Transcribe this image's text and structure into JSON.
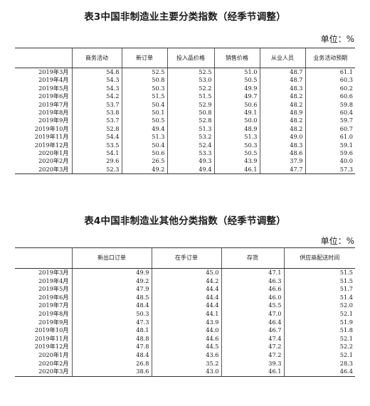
{
  "table3": {
    "title": "表3中国非制造业主要分类指数（经季节调整）",
    "unit": "单位：%",
    "headers": [
      "",
      "商务活动",
      "新订单",
      "投入品价格",
      "销售价格",
      "从业人员",
      "业务活动预期"
    ],
    "rows": [
      [
        "2019年3月",
        "54.8",
        "52.5",
        "52.5",
        "51.0",
        "48.7",
        "61.1"
      ],
      [
        "2019年4月",
        "54.3",
        "50.8",
        "53.0",
        "50.5",
        "48.7",
        "60.3"
      ],
      [
        "2019年5月",
        "54.3",
        "50.3",
        "52.2",
        "49.9",
        "48.3",
        "60.2"
      ],
      [
        "2019年6月",
        "54.2",
        "51.5",
        "51.5",
        "49.7",
        "48.2",
        "60.6"
      ],
      [
        "2019年7月",
        "53.7",
        "50.4",
        "52.9",
        "50.6",
        "48.2",
        "59.8"
      ],
      [
        "2019年8月",
        "53.8",
        "50.1",
        "50.8",
        "49.1",
        "48.9",
        "60.4"
      ],
      [
        "2019年9月",
        "53.7",
        "50.5",
        "52.8",
        "50.0",
        "48.2",
        "59.7"
      ],
      [
        "2019年10月",
        "52.8",
        "49.4",
        "51.3",
        "48.9",
        "48.2",
        "60.7"
      ],
      [
        "2019年11月",
        "54.4",
        "51.3",
        "53.2",
        "51.3",
        "49.0",
        "61.0"
      ],
      [
        "2019年12月",
        "53.5",
        "50.4",
        "52.4",
        "50.3",
        "48.3",
        "59.1"
      ],
      [
        "2020年1月",
        "54.1",
        "50.6",
        "53.3",
        "50.5",
        "48.6",
        "59.6"
      ],
      [
        "2020年2月",
        "29.6",
        "26.5",
        "49.3",
        "43.9",
        "37.9",
        "40.0"
      ],
      [
        "2020年3月",
        "52.3",
        "49.2",
        "49.4",
        "46.1",
        "47.7",
        "57.3"
      ]
    ]
  },
  "table4": {
    "title": "表4中国非制造业其他分类指数（经季节调整）",
    "unit": "单位：%",
    "headers": [
      "",
      "新出口订单",
      "在手订单",
      "存货",
      "供应商配送时间"
    ],
    "rows": [
      [
        "2019年3月",
        "49.9",
        "45.0",
        "47.1",
        "51.5"
      ],
      [
        "2019年4月",
        "49.2",
        "44.2",
        "46.3",
        "51.5"
      ],
      [
        "2019年5月",
        "47.9",
        "44.4",
        "46.6",
        "51.7"
      ],
      [
        "2019年6月",
        "48.5",
        "44.4",
        "46.0",
        "51.4"
      ],
      [
        "2019年7月",
        "48.4",
        "44.4",
        "45.5",
        "52.0"
      ],
      [
        "2019年8月",
        "50.3",
        "44.1",
        "47.0",
        "52.1"
      ],
      [
        "2019年9月",
        "47.3",
        "43.9",
        "46.4",
        "51.9"
      ],
      [
        "2019年10月",
        "48.1",
        "44.0",
        "46.7",
        "51.8"
      ],
      [
        "2019年11月",
        "48.8",
        "44.6",
        "47.4",
        "52.1"
      ],
      [
        "2019年12月",
        "47.8",
        "44.5",
        "47.2",
        "52.2"
      ],
      [
        "2020年1月",
        "48.4",
        "43.6",
        "47.2",
        "52.1"
      ],
      [
        "2020年2月",
        "26.8",
        "35.2",
        "39.3",
        "28.3"
      ],
      [
        "2020年3月",
        "38.6",
        "43.0",
        "46.1",
        "46.4"
      ]
    ]
  }
}
